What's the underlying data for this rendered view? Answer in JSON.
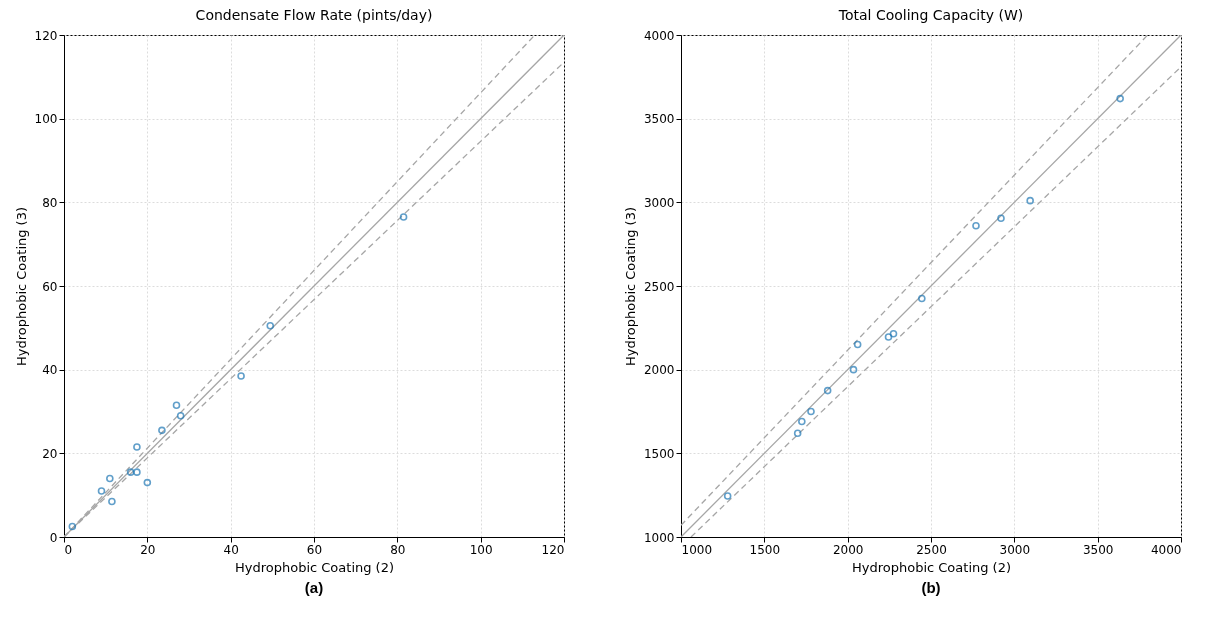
{
  "chart_data": [
    {
      "type": "scatter",
      "title": "Condensate Flow Rate (pints/day)",
      "xlabel": "Hydrophobic Coating (2)",
      "ylabel": "Hydrophobic Coating (3)",
      "annotations": [
        "(a)"
      ],
      "xlim": [
        0,
        120
      ],
      "ylim": [
        0,
        120
      ],
      "xticks": [
        0,
        20,
        40,
        60,
        80,
        100,
        120
      ],
      "yticks": [
        0,
        20,
        40,
        60,
        80,
        100,
        120
      ],
      "grid": true,
      "series": [
        {
          "type": "line",
          "marker": "none",
          "color": "#a6a6a6",
          "line_style": "solid",
          "x": [
            0,
            120
          ],
          "values": [
            0,
            120
          ]
        },
        {
          "type": "line",
          "marker": "none",
          "color": "#a6a6a6",
          "line_style": "dashed",
          "x": [
            0,
            113
          ],
          "values": [
            0,
            120
          ]
        },
        {
          "type": "line",
          "marker": "none",
          "color": "#a6a6a6",
          "line_style": "dashed",
          "x": [
            0,
            120
          ],
          "values": [
            0,
            113.5
          ]
        },
        {
          "type": "scatter",
          "marker": "circle",
          "color": "#1f77b4",
          "x": [
            2,
            9,
            11,
            11.5,
            16,
            17.5,
            17.5,
            20,
            23.5,
            27,
            28,
            42.5,
            49.5,
            81.5
          ],
          "values": [
            2.5,
            11,
            14,
            8.5,
            15.5,
            15.5,
            21.5,
            13,
            25.5,
            31.5,
            29,
            38.5,
            50.5,
            76.5
          ]
        }
      ]
    },
    {
      "type": "scatter",
      "title": "Total Cooling Capacity (W)",
      "xlabel": "Hydrophobic Coating (2)",
      "ylabel": "Hydrophobic Coating (3)",
      "annotations": [
        "(b)"
      ],
      "xlim": [
        1000,
        4000
      ],
      "ylim": [
        1000,
        4000
      ],
      "xticks": [
        1000,
        1500,
        2000,
        2500,
        3000,
        3500,
        4000
      ],
      "yticks": [
        1000,
        1500,
        2000,
        2500,
        3000,
        3500,
        4000
      ],
      "grid": true,
      "series": [
        {
          "type": "line",
          "marker": "none",
          "color": "#a6a6a6",
          "line_style": "solid",
          "x": [
            1000,
            4000
          ],
          "values": [
            1000,
            4000
          ]
        },
        {
          "type": "line",
          "marker": "none",
          "color": "#a6a6a6",
          "line_style": "dashed",
          "x": [
            1000,
            3800
          ],
          "values": [
            1070,
            4000
          ]
        },
        {
          "type": "line",
          "marker": "none",
          "color": "#a6a6a6",
          "line_style": "dashed",
          "x": [
            1060,
            4000
          ],
          "values": [
            1000,
            3810
          ]
        },
        {
          "type": "scatter",
          "marker": "circle",
          "color": "#1f77b4",
          "x": [
            1280,
            1700,
            1725,
            1780,
            1880,
            2035,
            2060,
            2245,
            2275,
            2445,
            2770,
            2920,
            3095,
            3635
          ],
          "values": [
            1245,
            1620,
            1690,
            1750,
            1875,
            2000,
            2150,
            2195,
            2215,
            2425,
            2860,
            2905,
            3010,
            3620
          ]
        }
      ]
    }
  ]
}
